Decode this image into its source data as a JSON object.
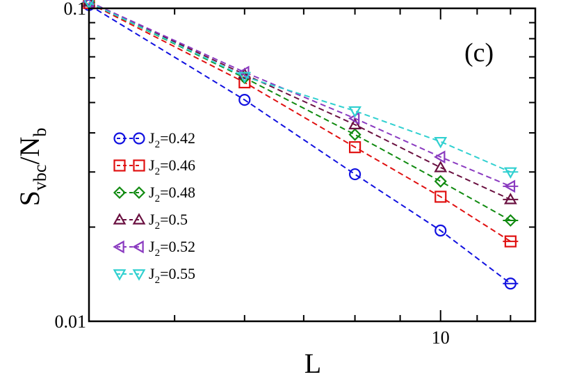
{
  "chart_data": {
    "type": "line",
    "scale": {
      "x": "log",
      "y": "log"
    },
    "x": [
      4,
      6,
      8,
      10,
      12
    ],
    "xlim": [
      4,
      12.8
    ],
    "ylim": [
      0.01,
      0.1
    ],
    "xlabel": "L",
    "ylabel": {
      "main": "S",
      "sub1": "vbc",
      "slash": "/N",
      "sub2": "b"
    },
    "panel_label": "(c)",
    "x_ticks": [
      {
        "value": 10,
        "label": "10"
      }
    ],
    "y_ticks": [
      {
        "value": 0.1,
        "label": "0.1"
      },
      {
        "value": 0.01,
        "label": "0.01"
      }
    ],
    "legend_position": "left-center",
    "series": [
      {
        "name": "J2=0.42",
        "label_main": "J",
        "label_sub": "2",
        "label_rest": "=0.42",
        "color": "#1010e0",
        "marker": "circle",
        "values": [
          0.1025,
          0.051,
          0.0295,
          0.0195,
          0.0132
        ],
        "error_bar": [
          false,
          false,
          false,
          false,
          true
        ]
      },
      {
        "name": "J2=0.46",
        "label_main": "J",
        "label_sub": "2",
        "label_rest": "=0.46",
        "color": "#e01010",
        "marker": "square",
        "values": [
          0.104,
          0.058,
          0.036,
          0.025,
          0.018
        ],
        "error_bar": [
          false,
          false,
          false,
          false,
          true
        ]
      },
      {
        "name": "J2=0.48",
        "label_main": "J",
        "label_sub": "2",
        "label_rest": "=0.48",
        "color": "#108a10",
        "marker": "diamond",
        "values": [
          0.1045,
          0.06,
          0.0395,
          0.028,
          0.021
        ],
        "error_bar": [
          false,
          false,
          false,
          false,
          true
        ]
      },
      {
        "name": "J2=0.5",
        "label_main": "J",
        "label_sub": "2",
        "label_rest": "=0.5",
        "color": "#6a1040",
        "marker": "triangle-up",
        "values": [
          0.1048,
          0.0615,
          0.0425,
          0.031,
          0.0245
        ],
        "error_bar": [
          false,
          false,
          false,
          false,
          true
        ]
      },
      {
        "name": "J2=0.52",
        "label_main": "J",
        "label_sub": "2",
        "label_rest": "=0.52",
        "color": "#8a3ac0",
        "marker": "triangle-left",
        "values": [
          0.105,
          0.0625,
          0.0445,
          0.0335,
          0.027
        ],
        "error_bar": [
          false,
          false,
          false,
          false,
          true
        ]
      },
      {
        "name": "J2=0.55",
        "label_main": "J",
        "label_sub": "2",
        "label_rest": "=0.55",
        "color": "#30d0d0",
        "marker": "triangle-down",
        "values": [
          0.1045,
          0.0605,
          0.047,
          0.0375,
          0.03
        ],
        "error_bar": [
          false,
          false,
          false,
          false,
          true
        ]
      }
    ]
  }
}
